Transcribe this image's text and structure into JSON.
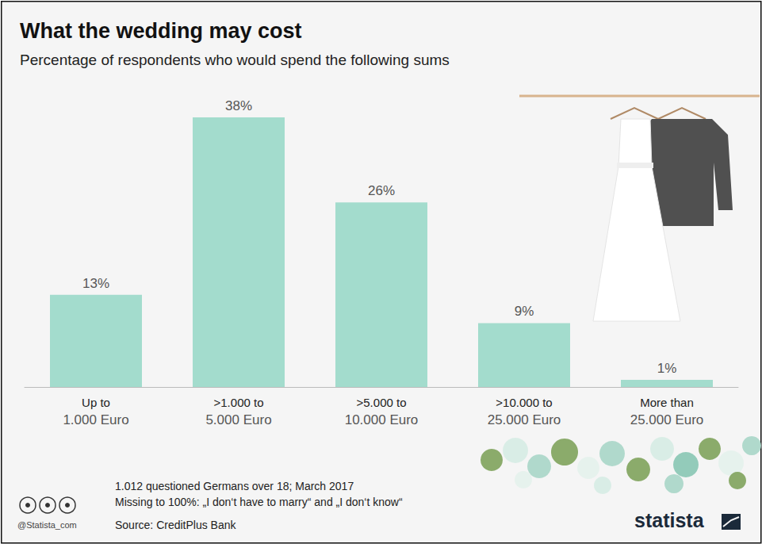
{
  "chart_data": {
    "type": "bar",
    "title": "What the wedding may cost",
    "subtitle": "Percentage of respondents who would spend the following sums",
    "categories": [
      "Up to 1.000 Euro",
      ">1.000 to 5.000 Euro",
      ">5.000 to 10.000 Euro",
      ">10.000 to 25.000 Euro",
      "More than 25.000 Euro"
    ],
    "values": [
      13,
      38,
      26,
      9,
      1
    ],
    "value_labels": [
      "13%",
      "38%",
      "26%",
      "9%",
      "1%"
    ],
    "color": "#a3dccd",
    "data_labels": true,
    "tick_labels": "x",
    "grid": false,
    "notes": [
      "1.012 questioned Germans over 18; March 2017",
      "Missing to 100%: „I don‘t have to marry“ and „I don‘t know“"
    ],
    "source": "Source: CreditPlus Bank",
    "credit": "@Statista_com",
    "brand": "statista"
  }
}
